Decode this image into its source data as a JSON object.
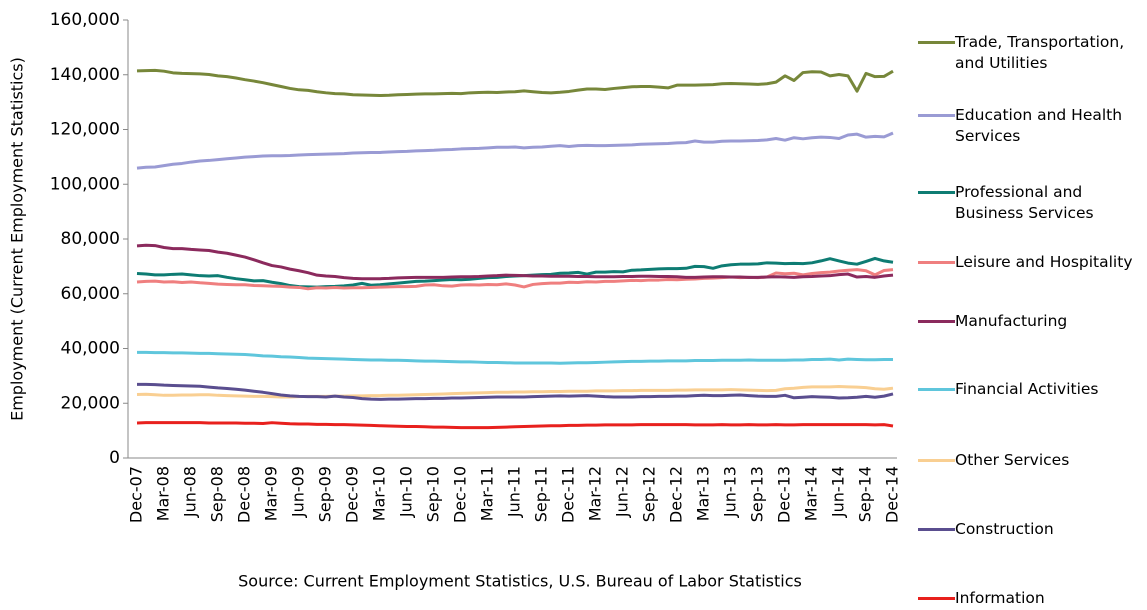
{
  "chart_data": {
    "type": "line",
    "y_label": "Employment (Current Employment Statistics)",
    "source": "Source: Current Employment Statistics, U.S. Bureau of Labor Statistics",
    "ylim": [
      0,
      160000
    ],
    "yticks": [
      0,
      {
        "value": 20000,
        "label": "20,000"
      },
      {
        "value": 40000,
        "label": "40,000"
      },
      {
        "value": 60000,
        "label": "60,000"
      },
      {
        "value": 80000,
        "label": "80,000"
      },
      {
        "value": 100000,
        "label": "100,000"
      },
      {
        "value": 120000,
        "label": "120,000"
      },
      {
        "value": 140000,
        "label": "140,000"
      },
      {
        "value": 160000,
        "label": "160,000"
      }
    ],
    "grid": false,
    "legend": "right",
    "categories": [
      "Dec-07",
      null,
      null,
      "Mar-08",
      null,
      null,
      "Jun-08",
      null,
      null,
      "Sep-08",
      null,
      null,
      "Dec-08",
      null,
      null,
      "Mar-09",
      null,
      null,
      "Jun-09",
      null,
      null,
      "Sep-09",
      null,
      null,
      "Dec-09",
      null,
      null,
      "Mar-10",
      null,
      null,
      "Jun-10",
      null,
      null,
      "Sep-10",
      null,
      null,
      "Dec-10",
      null,
      null,
      "Mar-11",
      null,
      null,
      "Jun-11",
      null,
      null,
      "Sep-11",
      null,
      null,
      "Dec-11",
      null,
      null,
      "Mar-12",
      null,
      null,
      "Jun-12",
      null,
      null,
      "Sep-12",
      null,
      null,
      "Dec-12",
      null,
      null,
      "Mar-13",
      null,
      null,
      "Jun-13",
      null,
      null,
      "Sep-13",
      null,
      null,
      "Dec-13",
      null,
      null,
      "Mar-14",
      null,
      null,
      "Jun-14",
      null,
      null,
      "Sep-14",
      null,
      null,
      "Dec-14"
    ],
    "series": [
      {
        "name": "Trade, Transportation, and Utilities",
        "color": "#77873a",
        "values": [
          141400,
          141500,
          141600,
          141300,
          140700,
          140500,
          140400,
          140300,
          140100,
          139600,
          139300,
          138800,
          138200,
          137700,
          137100,
          136400,
          135700,
          135000,
          134500,
          134300,
          133800,
          133400,
          133100,
          133000,
          132700,
          132600,
          132500,
          132400,
          132500,
          132700,
          132800,
          132900,
          133000,
          133000,
          133100,
          133200,
          133100,
          133400,
          133500,
          133600,
          133500,
          133700,
          133800,
          134100,
          133800,
          133500,
          133400,
          133600,
          133900,
          134400,
          134800,
          134800,
          134600,
          135000,
          135300,
          135600,
          135700,
          135700,
          135500,
          135200,
          136200,
          136200,
          136200,
          136300,
          136400,
          136700,
          136800,
          136700,
          136600,
          136500,
          136700,
          137300,
          139600,
          137900,
          140800,
          141100,
          141000,
          139600,
          140100,
          139600,
          134000,
          140500,
          139300,
          139400,
          141300
        ]
      },
      {
        "name": "Education and Health Services",
        "color": "#9a9bd4",
        "values": [
          105900,
          106200,
          106300,
          106800,
          107300,
          107600,
          108100,
          108500,
          108700,
          109000,
          109300,
          109600,
          109900,
          110100,
          110300,
          110400,
          110400,
          110500,
          110700,
          110800,
          110900,
          111000,
          111100,
          111200,
          111400,
          111500,
          111600,
          111600,
          111800,
          111900,
          112000,
          112200,
          112300,
          112400,
          112600,
          112700,
          112900,
          113000,
          113100,
          113300,
          113500,
          113500,
          113600,
          113300,
          113500,
          113600,
          113900,
          114100,
          113800,
          114100,
          114200,
          114100,
          114100,
          114200,
          114300,
          114400,
          114600,
          114700,
          114800,
          114900,
          115100,
          115200,
          115800,
          115400,
          115400,
          115700,
          115800,
          115800,
          115900,
          116000,
          116200,
          116700,
          116100,
          117000,
          116600,
          117000,
          117200,
          117100,
          116700,
          118000,
          118300,
          117200,
          117500,
          117300,
          118700
        ]
      },
      {
        "name": "Professional and Business Services",
        "color": "#0e7c73",
        "values": [
          67400,
          67200,
          66900,
          66900,
          67100,
          67200,
          66900,
          66600,
          66500,
          66600,
          66000,
          65500,
          65100,
          64700,
          64800,
          64200,
          63700,
          63000,
          62600,
          62500,
          62400,
          62600,
          62700,
          62900,
          63200,
          63800,
          63100,
          63300,
          63600,
          63900,
          64200,
          64500,
          64600,
          64800,
          65000,
          65200,
          65100,
          65300,
          65600,
          65900,
          66000,
          66300,
          66500,
          66600,
          66800,
          67000,
          67100,
          67500,
          67600,
          67800,
          67200,
          67900,
          67900,
          68100,
          68000,
          68600,
          68700,
          68900,
          69100,
          69200,
          69200,
          69300,
          70000,
          69900,
          69300,
          70200,
          70600,
          70800,
          70800,
          70900,
          71300,
          71200,
          71000,
          71100,
          71000,
          71300,
          72000,
          72800,
          72000,
          71200,
          70800,
          71800,
          72900,
          72000,
          71500
        ]
      },
      {
        "name": "Leisure and Hospitality",
        "color": "#ef7f7f",
        "values": [
          64300,
          64500,
          64600,
          64300,
          64400,
          64100,
          64300,
          64000,
          63800,
          63500,
          63400,
          63300,
          63300,
          63000,
          62900,
          62800,
          62700,
          62400,
          62300,
          61800,
          62200,
          62100,
          62300,
          62100,
          62200,
          62200,
          62300,
          62400,
          62500,
          62600,
          62600,
          62700,
          63200,
          63300,
          62900,
          62800,
          63200,
          63300,
          63200,
          63400,
          63300,
          63600,
          63200,
          62500,
          63400,
          63700,
          63900,
          63900,
          64200,
          64100,
          64400,
          64300,
          64500,
          64500,
          64700,
          64900,
          64800,
          65000,
          65000,
          65200,
          65100,
          65300,
          65400,
          65600,
          65700,
          65900,
          66100,
          65900,
          66000,
          65900,
          66100,
          67600,
          67300,
          67500,
          66900,
          67400,
          67700,
          67900,
          68300,
          68600,
          68800,
          68400,
          66900,
          68500,
          68800
        ]
      },
      {
        "name": "Manufacturing",
        "color": "#8b2a5d",
        "values": [
          77500,
          77700,
          77600,
          76900,
          76500,
          76500,
          76200,
          76000,
          75800,
          75200,
          74800,
          74100,
          73400,
          72400,
          71300,
          70300,
          69800,
          69000,
          68400,
          67700,
          66800,
          66500,
          66300,
          65900,
          65600,
          65500,
          65500,
          65500,
          65600,
          65800,
          65900,
          66000,
          66000,
          66000,
          66000,
          66100,
          66200,
          66200,
          66300,
          66500,
          66600,
          66800,
          66700,
          66600,
          66500,
          66500,
          66400,
          66400,
          66400,
          66300,
          66300,
          66200,
          66200,
          66200,
          66300,
          66300,
          66400,
          66400,
          66300,
          66300,
          66200,
          66000,
          66000,
          66100,
          66200,
          66200,
          66100,
          66100,
          66000,
          66000,
          66100,
          66200,
          66100,
          66000,
          66200,
          66300,
          66500,
          66600,
          67000,
          67200,
          66100,
          66300,
          66000,
          66500,
          66800
        ]
      },
      {
        "name": "Financial Activities",
        "color": "#5fc6dc",
        "values": [
          38600,
          38600,
          38500,
          38500,
          38400,
          38400,
          38300,
          38200,
          38200,
          38100,
          38000,
          37900,
          37800,
          37600,
          37300,
          37200,
          37000,
          36900,
          36700,
          36500,
          36400,
          36300,
          36200,
          36100,
          36000,
          35900,
          35800,
          35800,
          35700,
          35700,
          35600,
          35500,
          35400,
          35400,
          35300,
          35200,
          35100,
          35100,
          35000,
          34900,
          34900,
          34800,
          34700,
          34700,
          34700,
          34700,
          34700,
          34600,
          34700,
          34800,
          34800,
          34900,
          35000,
          35100,
          35200,
          35300,
          35300,
          35400,
          35400,
          35500,
          35500,
          35500,
          35600,
          35600,
          35600,
          35700,
          35700,
          35700,
          35800,
          35700,
          35700,
          35700,
          35700,
          35800,
          35800,
          36000,
          36000,
          36100,
          35800,
          36100,
          36000,
          35900,
          35900,
          36000,
          36000
        ]
      },
      {
        "name": "Other Services",
        "color": "#f9cf92",
        "values": [
          23200,
          23300,
          23100,
          22900,
          22900,
          23000,
          23000,
          23100,
          23100,
          22900,
          22800,
          22700,
          22600,
          22500,
          22500,
          22400,
          22300,
          22300,
          22400,
          22500,
          22500,
          22500,
          22600,
          22600,
          22700,
          22700,
          22800,
          22800,
          22900,
          22900,
          23000,
          23100,
          23200,
          23300,
          23400,
          23500,
          23600,
          23700,
          23800,
          23900,
          24000,
          24000,
          24100,
          24100,
          24200,
          24200,
          24300,
          24300,
          24400,
          24400,
          24400,
          24500,
          24500,
          24500,
          24600,
          24600,
          24700,
          24700,
          24700,
          24700,
          24800,
          24800,
          24900,
          24900,
          24900,
          24900,
          25000,
          24900,
          24800,
          24700,
          24600,
          24700,
          25300,
          25500,
          25800,
          26000,
          26000,
          26000,
          26100,
          26000,
          25900,
          25700,
          25300,
          25100,
          25500
        ]
      },
      {
        "name": "Construction",
        "color": "#5a4e8f",
        "values": [
          26900,
          26900,
          26800,
          26600,
          26500,
          26400,
          26300,
          26200,
          25900,
          25600,
          25400,
          25100,
          24800,
          24400,
          24000,
          23500,
          23000,
          22700,
          22500,
          22400,
          22400,
          22300,
          22600,
          22300,
          22100,
          21700,
          21500,
          21400,
          21500,
          21500,
          21600,
          21700,
          21700,
          21800,
          21800,
          21900,
          21900,
          22000,
          22100,
          22200,
          22300,
          22300,
          22300,
          22300,
          22400,
          22500,
          22600,
          22700,
          22600,
          22700,
          22800,
          22600,
          22400,
          22300,
          22300,
          22300,
          22400,
          22400,
          22500,
          22500,
          22600,
          22600,
          22800,
          22900,
          22800,
          22800,
          22900,
          23000,
          22800,
          22600,
          22500,
          22500,
          22900,
          22000,
          22200,
          22400,
          22300,
          22200,
          21900,
          22000,
          22200,
          22500,
          22200,
          22600,
          23400
        ]
      },
      {
        "name": "Information",
        "color": "#e8201d",
        "values": [
          12800,
          12900,
          12900,
          12900,
          12900,
          12900,
          12900,
          12900,
          12800,
          12800,
          12800,
          12800,
          12700,
          12700,
          12600,
          12900,
          12700,
          12500,
          12400,
          12400,
          12300,
          12300,
          12200,
          12200,
          12100,
          12000,
          11900,
          11800,
          11700,
          11600,
          11500,
          11500,
          11400,
          11300,
          11300,
          11200,
          11100,
          11100,
          11100,
          11100,
          11200,
          11300,
          11400,
          11500,
          11600,
          11700,
          11800,
          11800,
          11900,
          11900,
          12000,
          12000,
          12100,
          12100,
          12100,
          12100,
          12200,
          12200,
          12200,
          12200,
          12200,
          12200,
          12100,
          12100,
          12100,
          12200,
          12100,
          12100,
          12200,
          12100,
          12100,
          12200,
          12100,
          12100,
          12200,
          12200,
          12200,
          12200,
          12200,
          12200,
          12200,
          12200,
          12100,
          12200,
          11700
        ]
      }
    ]
  }
}
